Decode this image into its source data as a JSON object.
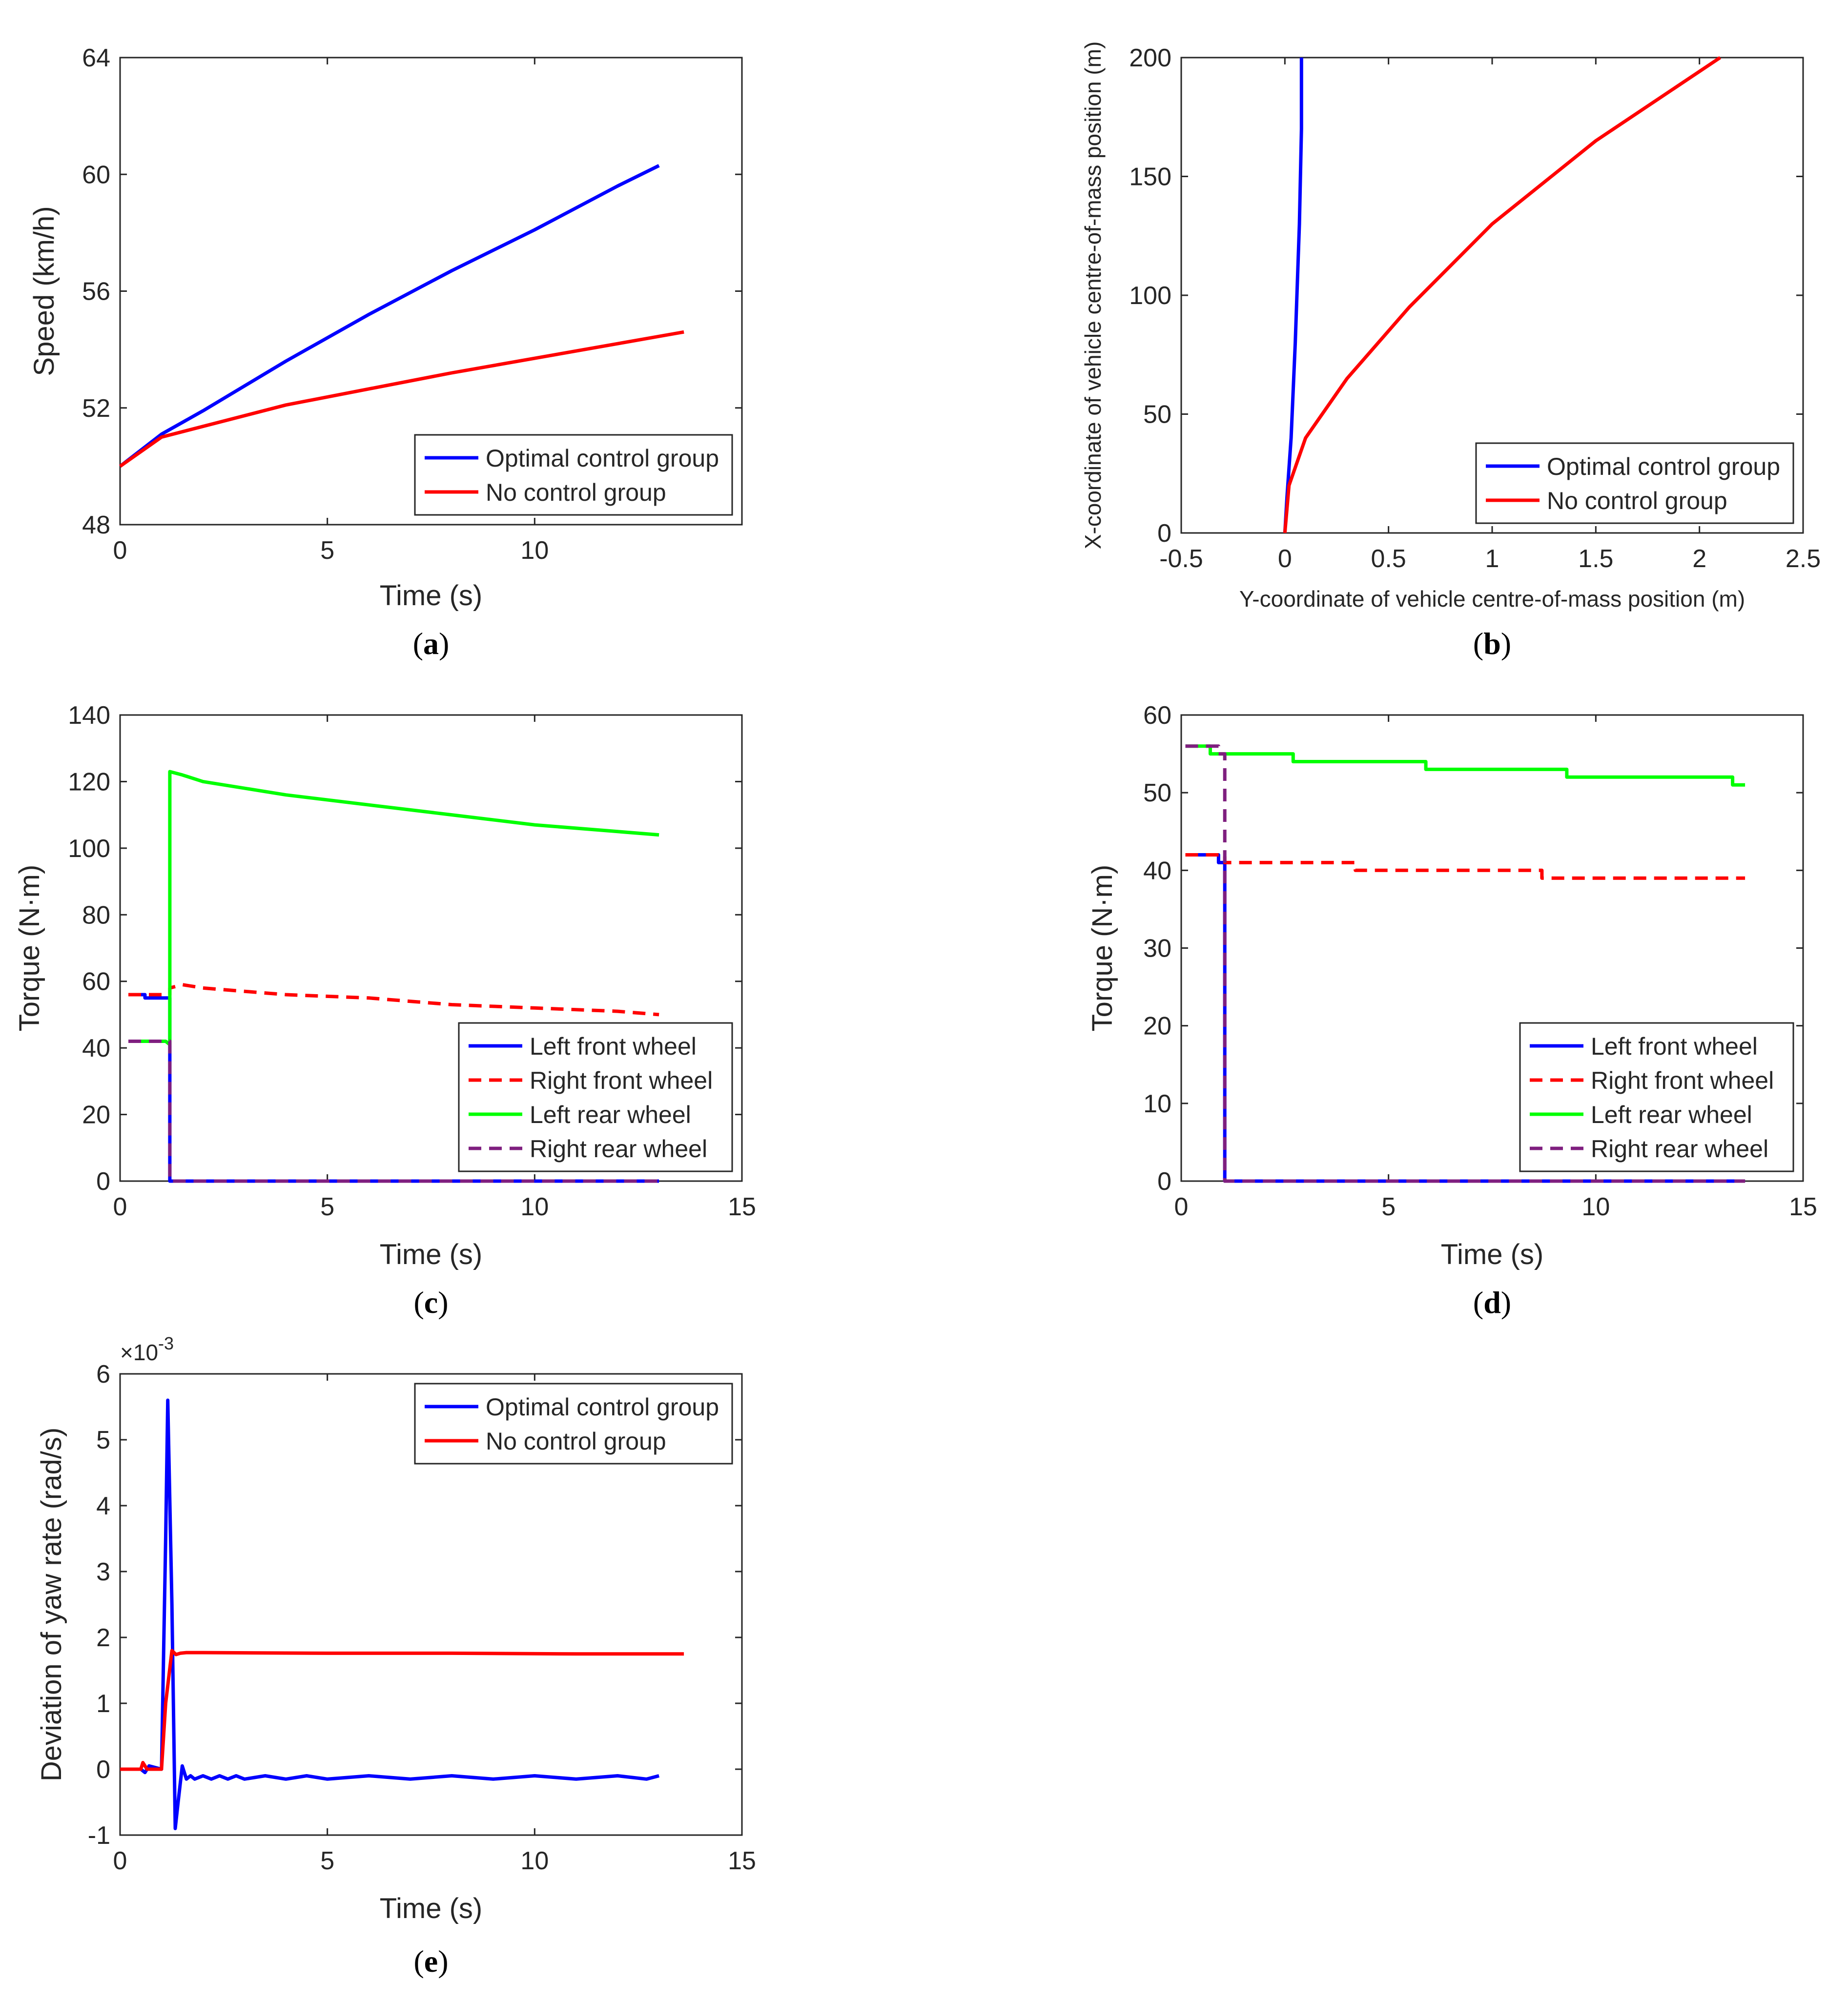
{
  "chart_data": [
    {
      "id": "a",
      "type": "line",
      "caption": "a",
      "xlabel": "Time (s)",
      "ylabel": "Speed (km/h)",
      "xlim": [
        0,
        15
      ],
      "ylim": [
        48,
        64
      ],
      "xticks": [
        0,
        5,
        10
      ],
      "xtick_labels": [
        "0",
        "5",
        "10"
      ],
      "yticks": [
        48,
        52,
        56,
        60,
        64
      ],
      "ytick_labels": [
        "48",
        "52",
        "56",
        "60",
        "64"
      ],
      "legend_position": "bottom-right",
      "series": [
        {
          "name": "Optimal control group",
          "color": "#0000ff",
          "dash": "solid",
          "x": [
            0,
            1,
            2,
            4,
            6,
            8,
            10,
            12,
            13
          ],
          "y": [
            50.0,
            51.1,
            51.9,
            53.6,
            55.2,
            56.7,
            58.1,
            59.6,
            60.3
          ]
        },
        {
          "name": "No control group",
          "color": "#ff0000",
          "dash": "solid",
          "x": [
            0,
            1,
            4,
            8,
            12,
            13.6
          ],
          "y": [
            50.0,
            51.0,
            52.1,
            53.2,
            54.2,
            54.6
          ]
        }
      ]
    },
    {
      "id": "b",
      "type": "line",
      "caption": "b",
      "xlabel": "Y-coordinate of vehicle centre-of-mass position (m)",
      "ylabel": "X-coordinate of vehicle centre-of-mass position (m)",
      "xlim": [
        -0.5,
        2.5
      ],
      "ylim": [
        0,
        200
      ],
      "xticks": [
        -0.5,
        0,
        0.5,
        1,
        1.5,
        2,
        2.5
      ],
      "xtick_labels": [
        "-0.5",
        "0",
        "0.5",
        "1",
        "1.5",
        "2",
        "2.5"
      ],
      "yticks": [
        0,
        50,
        100,
        150,
        200
      ],
      "ytick_labels": [
        "0",
        "50",
        "100",
        "150",
        "200"
      ],
      "legend_position": "bottom-right",
      "series": [
        {
          "name": "Optimal control group",
          "color": "#0000ff",
          "dash": "solid",
          "x": [
            0,
            0.01,
            0.03,
            0.05,
            0.07,
            0.08,
            0.08
          ],
          "y": [
            0,
            15,
            40,
            80,
            130,
            170,
            200
          ]
        },
        {
          "name": "No control group",
          "color": "#ff0000",
          "dash": "solid",
          "x": [
            0,
            0.02,
            0.1,
            0.3,
            0.6,
            1.0,
            1.5,
            2.1
          ],
          "y": [
            0,
            20,
            40,
            65,
            95,
            130,
            165,
            200
          ]
        }
      ]
    },
    {
      "id": "c",
      "type": "line",
      "caption": "c",
      "xlabel": "Time (s)",
      "ylabel": "Torque (N·m)",
      "xlim": [
        0,
        15
      ],
      "ylim": [
        0,
        140
      ],
      "xticks": [
        0,
        5,
        10,
        15
      ],
      "xtick_labels": [
        "0",
        "5",
        "10",
        "15"
      ],
      "yticks": [
        0,
        20,
        40,
        60,
        80,
        100,
        120,
        140
      ],
      "ytick_labels": [
        "0",
        "20",
        "40",
        "60",
        "80",
        "100",
        "120",
        "140"
      ],
      "legend_position": "bottom-right",
      "series": [
        {
          "name": "Left front wheel",
          "color": "#0000ff",
          "dash": "solid",
          "x": [
            0.2,
            0.6,
            0.6,
            1.2,
            1.2,
            13
          ],
          "y": [
            56,
            56,
            55,
            55,
            0,
            0
          ]
        },
        {
          "name": "Right front wheel",
          "color": "#ff0000",
          "dash": "dashed",
          "x": [
            0.2,
            1.2,
            1.2,
            1.5,
            2,
            4,
            6,
            8,
            10,
            12,
            13
          ],
          "y": [
            56,
            56,
            58,
            59,
            58,
            56,
            55,
            53,
            52,
            51,
            50
          ]
        },
        {
          "name": "Left rear wheel",
          "color": "#00ff00",
          "dash": "solid",
          "x": [
            0.2,
            1.1,
            1.2,
            1.2,
            1.5,
            2,
            4,
            6,
            8,
            10,
            12,
            13
          ],
          "y": [
            42,
            42,
            41,
            123,
            122,
            120,
            116,
            113,
            110,
            107,
            105,
            104
          ]
        },
        {
          "name": "Right rear wheel",
          "color": "#7f1f7f",
          "dash": "dashed",
          "x": [
            0.2,
            1.2,
            1.2,
            13
          ],
          "y": [
            42,
            42,
            0,
            0
          ]
        }
      ]
    },
    {
      "id": "d",
      "type": "line",
      "caption": "d",
      "xlabel": "Time (s)",
      "ylabel": "Torque (N·m)",
      "xlim": [
        0,
        15
      ],
      "ylim": [
        0,
        60
      ],
      "xticks": [
        0,
        5,
        10,
        15
      ],
      "xtick_labels": [
        "0",
        "5",
        "10",
        "15"
      ],
      "yticks": [
        0,
        10,
        20,
        30,
        40,
        50,
        60
      ],
      "ytick_labels": [
        "0",
        "10",
        "20",
        "30",
        "40",
        "50",
        "60"
      ],
      "legend_position": "bottom-right",
      "series": [
        {
          "name": "Left front wheel",
          "color": "#0000ff",
          "dash": "solid",
          "x": [
            0.1,
            0.9,
            0.9,
            1.05,
            1.05,
            13.6
          ],
          "y": [
            42,
            42,
            41,
            41,
            0,
            0
          ]
        },
        {
          "name": "Right front wheel",
          "color": "#ff0000",
          "dash": "dashed",
          "x": [
            0.1,
            1.05,
            1.05,
            4.2,
            4.2,
            8.7,
            8.7,
            13.6
          ],
          "y": [
            42,
            42,
            41,
            41,
            40,
            40,
            39,
            39
          ]
        },
        {
          "name": "Left rear wheel",
          "color": "#00ff00",
          "dash": "solid",
          "x": [
            0.1,
            0.7,
            0.7,
            2.7,
            2.7,
            5.9,
            5.9,
            9.3,
            9.3,
            13.3,
            13.3,
            13.6
          ],
          "y": [
            56,
            56,
            55,
            55,
            54,
            54,
            53,
            53,
            52,
            52,
            51,
            51
          ]
        },
        {
          "name": "Right rear wheel",
          "color": "#7f1f7f",
          "dash": "dashed",
          "x": [
            0.1,
            0.9,
            0.9,
            1.05,
            1.05,
            13.6
          ],
          "y": [
            56,
            56,
            55,
            55,
            0,
            0
          ]
        }
      ]
    },
    {
      "id": "e",
      "type": "line",
      "caption": "e",
      "xlabel": "Time (s)",
      "ylabel": "Deviation of yaw rate (rad/s)",
      "exponent_label": "×10",
      "exponent_power": "-3",
      "xlim": [
        0,
        15
      ],
      "ylim": [
        -1,
        6
      ],
      "xticks": [
        0,
        5,
        10,
        15
      ],
      "xtick_labels": [
        "0",
        "5",
        "10",
        "15"
      ],
      "yticks": [
        -1,
        0,
        1,
        2,
        3,
        4,
        5,
        6
      ],
      "ytick_labels": [
        "-1",
        "0",
        "1",
        "2",
        "3",
        "4",
        "5",
        "6"
      ],
      "legend_position": "top-right",
      "series": [
        {
          "name": "Optimal control group",
          "color": "#0000ff",
          "dash": "solid",
          "x": [
            0,
            0.5,
            0.6,
            0.7,
            1.0,
            1.1,
            1.15,
            1.25,
            1.33,
            1.4,
            1.5,
            1.6,
            1.7,
            1.8,
            2.0,
            2.2,
            2.4,
            2.6,
            2.8,
            3.0,
            3.5,
            4.0,
            4.5,
            5.0,
            6.0,
            7.0,
            8.0,
            9.0,
            10.0,
            11.0,
            12.0,
            12.7,
            13.0
          ],
          "y": [
            0,
            0,
            -0.05,
            0.05,
            0,
            3.5,
            5.6,
            2.5,
            -0.9,
            -0.5,
            0.05,
            -0.15,
            -0.1,
            -0.15,
            -0.1,
            -0.15,
            -0.1,
            -0.15,
            -0.1,
            -0.15,
            -0.1,
            -0.15,
            -0.1,
            -0.15,
            -0.1,
            -0.15,
            -0.1,
            -0.15,
            -0.1,
            -0.15,
            -0.1,
            -0.15,
            -0.1
          ]
        },
        {
          "name": "No control group",
          "color": "#ff0000",
          "dash": "solid",
          "x": [
            0,
            0.5,
            0.55,
            0.65,
            1.0,
            1.1,
            1.25,
            1.35,
            1.45,
            1.6,
            2,
            5,
            8,
            11,
            13.6
          ],
          "y": [
            0,
            0,
            0.1,
            0,
            0,
            1.0,
            1.8,
            1.74,
            1.76,
            1.77,
            1.77,
            1.76,
            1.76,
            1.75,
            1.75
          ]
        }
      ]
    }
  ]
}
